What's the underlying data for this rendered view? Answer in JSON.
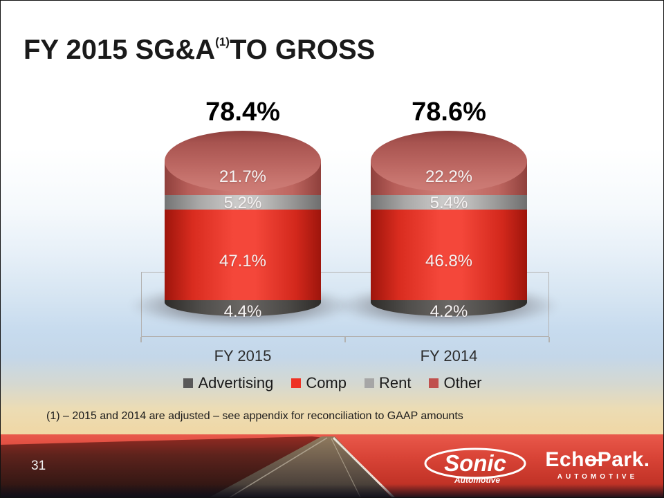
{
  "slide": {
    "title_main": "FY 2015 SG&A",
    "title_superscript": "(1)",
    "title_rest": "TO GROSS",
    "footnote": "(1) – 2015 and 2014 are adjusted – see appendix for reconciliation to GAAP amounts",
    "page_number": "31"
  },
  "chart_data": {
    "type": "bar",
    "subtype": "3d-stacked-cylinders",
    "categories": [
      "FY 2015",
      "FY 2014"
    ],
    "series": [
      {
        "name": "Advertising",
        "color": "#595959",
        "values": [
          4.4,
          4.2
        ]
      },
      {
        "name": "Comp",
        "color": "#ee3124",
        "values": [
          47.1,
          46.8
        ]
      },
      {
        "name": "Rent",
        "color": "#a6a6a6",
        "values": [
          5.2,
          5.4
        ]
      },
      {
        "name": "Other",
        "color": "#c0504d",
        "values": [
          21.7,
          22.2
        ]
      }
    ],
    "totals": [
      78.4,
      78.6
    ],
    "value_format": "percent-1-decimal",
    "legend_position": "bottom",
    "stack_order_top_to_bottom": [
      "Other",
      "Rent",
      "Comp",
      "Advertising"
    ],
    "grid": false
  },
  "logos": {
    "sonic_name": "Sonic",
    "sonic_sub": "Automotive",
    "echopark_name": "EchoPark.",
    "echopark_sub": "AUTOMOTIVE"
  }
}
